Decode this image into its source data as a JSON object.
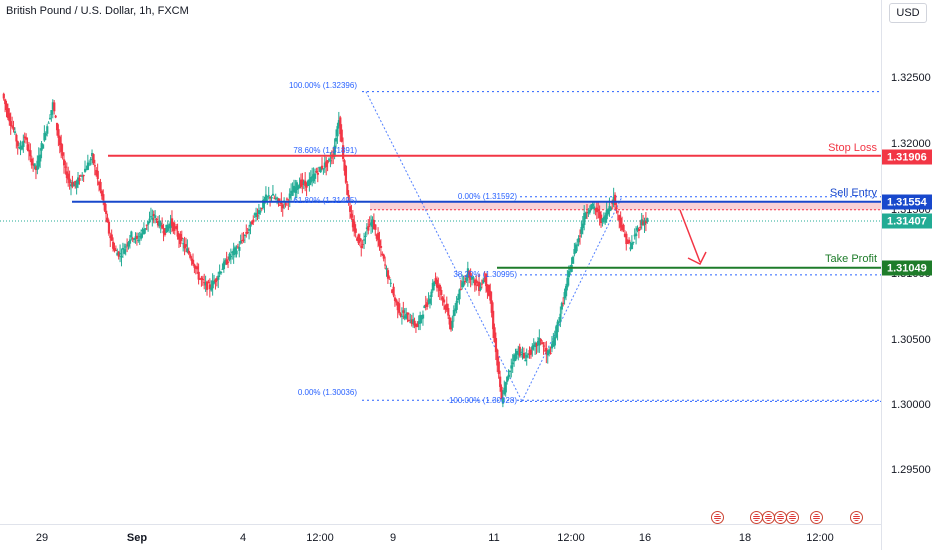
{
  "header": {
    "title": "British Pound / U.S. Dollar, 1h, FXCM",
    "currency": "USD"
  },
  "price_axis": {
    "ticks": [
      {
        "label": "1.32500",
        "value": 1.325
      },
      {
        "label": "1.32000",
        "value": 1.32
      },
      {
        "label": "1.31500",
        "value": 1.315
      },
      {
        "label": "1.31000",
        "value": 1.31
      },
      {
        "label": "1.30500",
        "value": 1.305
      },
      {
        "label": "1.30000",
        "value": 1.3
      },
      {
        "label": "1.29500",
        "value": 1.295
      }
    ],
    "badges": [
      {
        "label": "1.31906",
        "value": 1.31906,
        "color": "#f23645"
      },
      {
        "label": "1.31554",
        "value": 1.31554,
        "color": "#1848cc"
      },
      {
        "label": "1.31407",
        "value": 1.31407,
        "color": "#22ab94"
      },
      {
        "label": "1.31049",
        "value": 1.31049,
        "color": "#1e7c2a"
      }
    ]
  },
  "time_axis": {
    "labels": [
      "29",
      "Sep",
      "4",
      "12:00",
      "9",
      "11",
      "12:00",
      "16",
      "18",
      "12:00"
    ]
  },
  "levels": {
    "stop_loss": {
      "label": "Stop Loss",
      "value": 1.31906,
      "color": "#f23645"
    },
    "sell_entry": {
      "label": "Sell Entry",
      "value": 1.31554,
      "color": "#1848cc"
    },
    "take_profit": {
      "label": "Take Profit",
      "value": 1.31049,
      "color": "#1e7c2a"
    },
    "last_price": 1.31407
  },
  "fib_labels": [
    "100.00% (1.32396)",
    "78.60% (1.31891)",
    "61.80% (1.31495)",
    "0.00% (1.30036)",
    "0.00% (1.31592)",
    "38.20% (1.30995)",
    "100.00% (1.30028)"
  ],
  "event_flags": [
    "us-flag",
    "uk-flag",
    "uk-flag",
    "us-flag",
    "us-flag",
    "uk-flag",
    "uk-flag"
  ],
  "colors": {
    "up": "#22ab94",
    "down": "#f23645",
    "fib": "#2962ff",
    "zone": "#f7c5cc"
  },
  "chart_data": {
    "type": "candlestick",
    "symbol": "GBPUSD",
    "interval": "1h",
    "ylim": [
      1.2915,
      1.3295
    ],
    "key_points": [
      {
        "label": "swing high",
        "value": 1.32396
      },
      {
        "label": "swing low",
        "value": 1.30028
      },
      {
        "label": "retrace high",
        "value": 1.31592
      }
    ],
    "close_path": [
      1.3238,
      1.3222,
      1.321,
      1.3195,
      1.3205,
      1.3188,
      1.318,
      1.3198,
      1.3214,
      1.323,
      1.3205,
      1.3182,
      1.317,
      1.3168,
      1.3175,
      1.3182,
      1.319,
      1.3172,
      1.3155,
      1.3132,
      1.3118,
      1.3115,
      1.3122,
      1.313,
      1.3126,
      1.3133,
      1.314,
      1.3145,
      1.3138,
      1.3133,
      1.314,
      1.3132,
      1.3124,
      1.3118,
      1.311,
      1.3098,
      1.3092,
      1.309,
      1.3096,
      1.3104,
      1.311,
      1.3116,
      1.312,
      1.3128,
      1.3135,
      1.3145,
      1.315,
      1.3158,
      1.316,
      1.3156,
      1.3153,
      1.3158,
      1.3165,
      1.317,
      1.3168,
      1.3172,
      1.3178,
      1.3182,
      1.3185,
      1.3192,
      1.322,
      1.318,
      1.3145,
      1.313,
      1.3122,
      1.3135,
      1.314,
      1.3125,
      1.311,
      1.3095,
      1.308,
      1.307,
      1.3068,
      1.3064,
      1.306,
      1.3072,
      1.308,
      1.3096,
      1.3088,
      1.3075,
      1.306,
      1.308,
      1.3092,
      1.3102,
      1.3095,
      1.309,
      1.3098,
      1.308,
      1.304,
      1.3003,
      1.302,
      1.3035,
      1.3042,
      1.3036,
      1.304,
      1.3045,
      1.305,
      1.3038,
      1.3044,
      1.3062,
      1.308,
      1.31,
      1.3118,
      1.3132,
      1.3148,
      1.3152,
      1.3148,
      1.314,
      1.315,
      1.3158,
      1.3142,
      1.3128,
      1.312,
      1.3132,
      1.314,
      1.3141
    ]
  }
}
